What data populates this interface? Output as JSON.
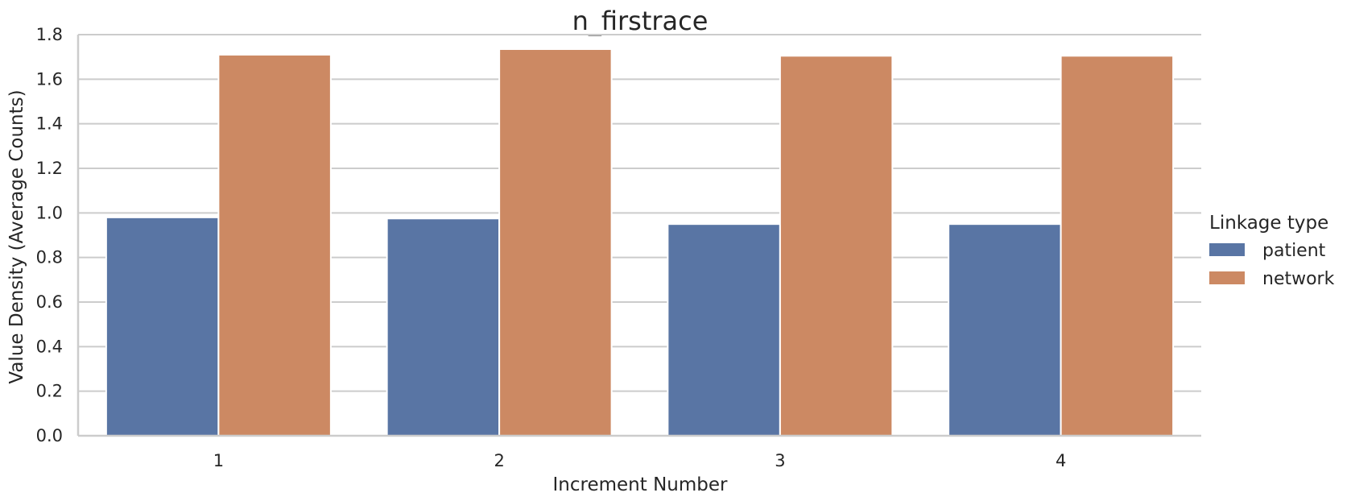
{
  "chart_data": {
    "type": "bar",
    "title": "n_firstrace",
    "xlabel": "Increment Number",
    "ylabel": "Value Density (Average Counts)",
    "categories": [
      "1",
      "2",
      "3",
      "4"
    ],
    "ylim": [
      0,
      1.8
    ],
    "yticks": [
      "0.0",
      "0.2",
      "0.4",
      "0.6",
      "0.8",
      "1.0",
      "1.2",
      "1.4",
      "1.6",
      "1.8"
    ],
    "grid": "horizontal",
    "legend": {
      "title": "Linkage type",
      "placement": "right"
    },
    "series": [
      {
        "name": "patient",
        "color": "#5975a4",
        "values": [
          0.98,
          0.975,
          0.95,
          0.95
        ]
      },
      {
        "name": "network",
        "color": "#cc8963",
        "values": [
          1.71,
          1.735,
          1.705,
          1.705
        ]
      }
    ]
  }
}
